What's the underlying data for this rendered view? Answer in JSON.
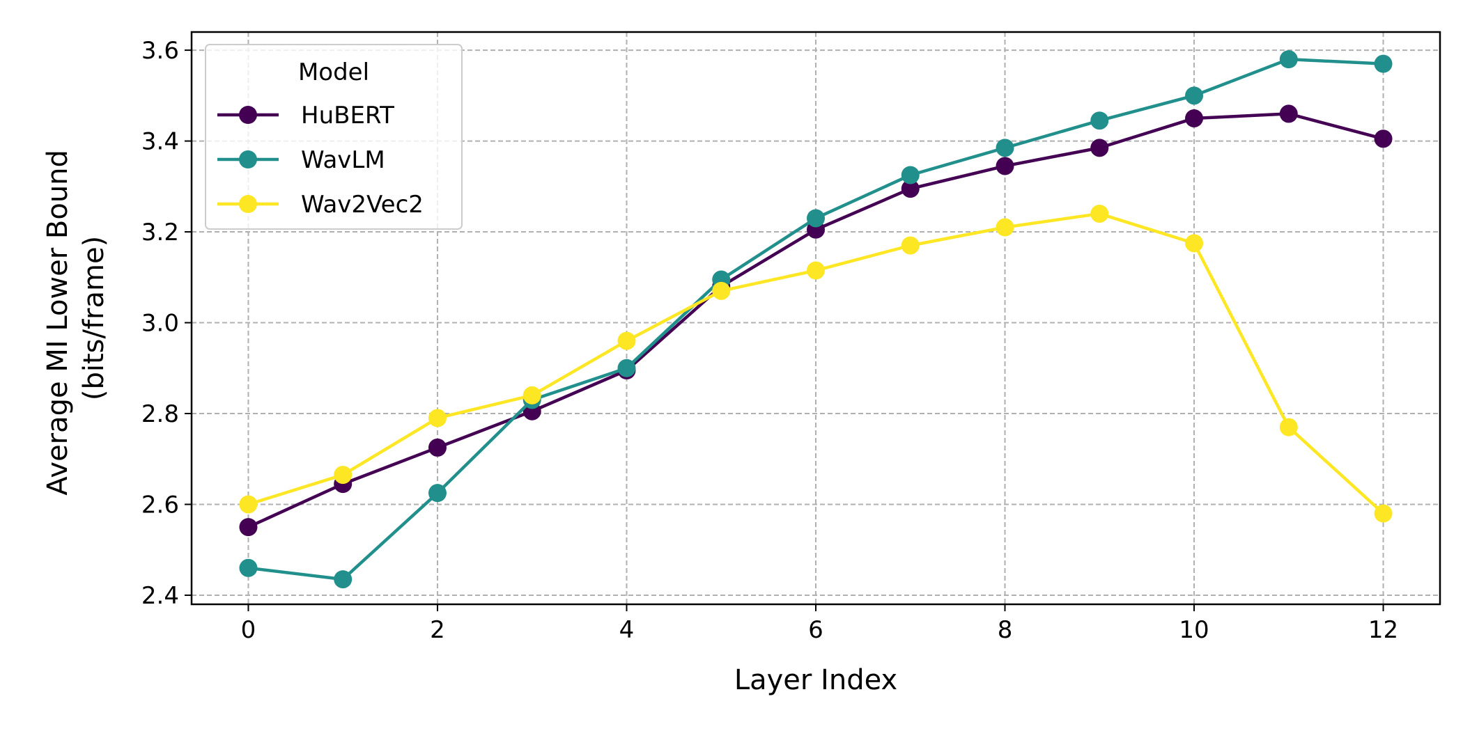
{
  "chart_data": {
    "type": "line",
    "title": "",
    "xlabel": "Layer Index",
    "ylabel": [
      "Average MI Lower Bound",
      "(bits/frame)"
    ],
    "x": [
      0,
      1,
      2,
      3,
      4,
      5,
      6,
      7,
      8,
      9,
      10,
      11,
      12
    ],
    "xlim": [
      -0.6,
      12.6
    ],
    "ylim": [
      2.38,
      3.64
    ],
    "xticks": [
      0,
      2,
      4,
      6,
      8,
      10,
      12
    ],
    "xtick_labels": [
      "0",
      "2",
      "4",
      "6",
      "8",
      "10",
      "12"
    ],
    "yticks": [
      2.4,
      2.6,
      2.8,
      3.0,
      3.2,
      3.4,
      3.6
    ],
    "ytick_labels": [
      "2.4",
      "2.6",
      "2.8",
      "3.0",
      "3.2",
      "3.4",
      "3.6"
    ],
    "grid": true,
    "legend": {
      "title": "Model",
      "placement": "top-left"
    },
    "series": [
      {
        "name": "HuBERT",
        "color": "#440154",
        "values": [
          2.55,
          2.645,
          2.725,
          2.805,
          2.895,
          3.08,
          3.205,
          3.295,
          3.345,
          3.385,
          3.45,
          3.46,
          3.405
        ]
      },
      {
        "name": "WavLM",
        "color": "#21908d",
        "values": [
          2.46,
          2.435,
          2.625,
          2.83,
          2.9,
          3.095,
          3.23,
          3.325,
          3.385,
          3.445,
          3.5,
          3.58,
          3.57
        ]
      },
      {
        "name": "Wav2Vec2",
        "color": "#fde725",
        "values": [
          2.6,
          2.665,
          2.79,
          2.84,
          2.96,
          3.07,
          3.115,
          3.17,
          3.21,
          3.24,
          3.175,
          2.77,
          2.58
        ]
      }
    ]
  }
}
